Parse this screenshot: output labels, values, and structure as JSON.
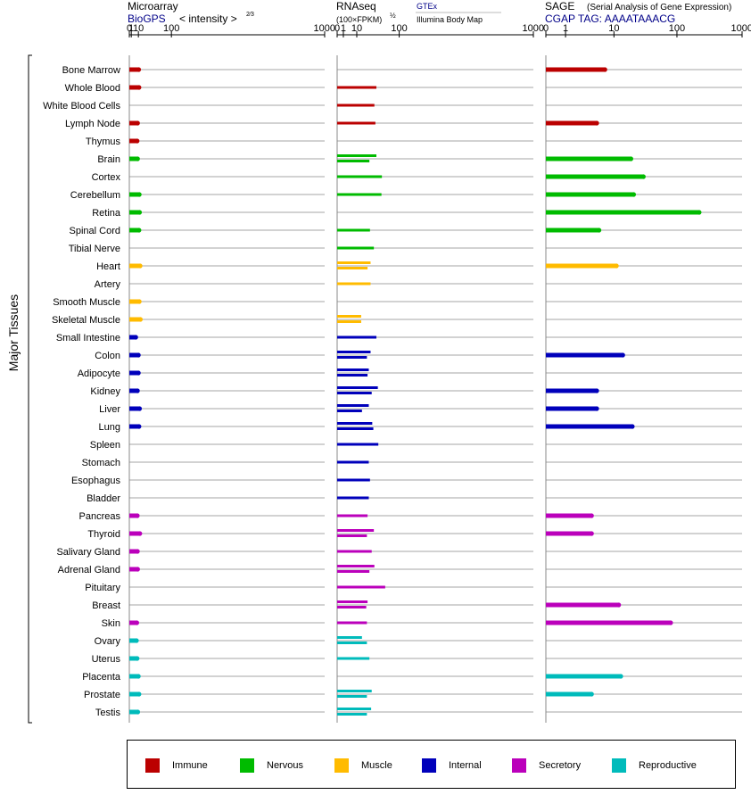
{
  "side_label": "Major Tissues",
  "panels": [
    {
      "title": "Microarray",
      "subtitle": "BioGPS",
      "scale_label": "< intensity >",
      "scale_exp": "2⁄3",
      "extra": ""
    },
    {
      "title": "RNAseq",
      "subtitle": "(100×FPKM)",
      "scale_exp": "½",
      "link1": "GTEx",
      "link2": "Illumina Body Map"
    },
    {
      "title": "SAGE",
      "title_note": "(Serial Analysis of Gene Expression)",
      "subtitle": "CGAP TAG: AAAATAAACG"
    }
  ],
  "colors": {
    "Immune": "#bb0000",
    "Nervous": "#00bb00",
    "Muscle": "#ffbb00",
    "Internal": "#0000bb",
    "Secretory": "#bb00bb",
    "Reproductive": "#00bbbb"
  },
  "legend": [
    {
      "label": "Immune",
      "color": "#bb0000"
    },
    {
      "label": "Nervous",
      "color": "#00bb00"
    },
    {
      "label": "Muscle",
      "color": "#ffbb00"
    },
    {
      "label": "Internal",
      "color": "#0000bb"
    },
    {
      "label": "Secretory",
      "color": "#bb00bb"
    },
    {
      "label": "Reproductive",
      "color": "#00bbbb"
    }
  ],
  "chart_data": [
    {
      "type": "bar",
      "title": "Microarray",
      "subtitle": "BioGPS",
      "xlabel": "< intensity >2/3",
      "x_ticks": [
        "0",
        "1",
        "10",
        "100",
        "1000"
      ],
      "x_scale": "power 2/3",
      "xlim": [
        0,
        1000
      ],
      "categories": [
        "Bone Marrow",
        "Whole Blood",
        "White Blood Cells",
        "Lymph Node",
        "Thymus",
        "Brain",
        "Cortex",
        "Cerebellum",
        "Retina",
        "Spinal Cord",
        "Tibial Nerve",
        "Heart",
        "Artery",
        "Smooth Muscle",
        "Skeletal Muscle",
        "Small Intestine",
        "Colon",
        "Adipocyte",
        "Kidney",
        "Liver",
        "Lung",
        "Spleen",
        "Stomach",
        "Esophagus",
        "Bladder",
        "Pancreas",
        "Thyroid",
        "Salivary Gland",
        "Adrenal Gland",
        "Pituitary",
        "Breast",
        "Skin",
        "Ovary",
        "Uterus",
        "Placenta",
        "Prostate",
        "Testis"
      ],
      "groups": [
        "Immune",
        "Immune",
        "Immune",
        "Immune",
        "Immune",
        "Nervous",
        "Nervous",
        "Nervous",
        "Nervous",
        "Nervous",
        "Nervous",
        "Muscle",
        "Muscle",
        "Muscle",
        "Muscle",
        "Internal",
        "Internal",
        "Internal",
        "Internal",
        "Internal",
        "Internal",
        "Internal",
        "Internal",
        "Internal",
        "Internal",
        "Secretory",
        "Secretory",
        "Secretory",
        "Secretory",
        "Secretory",
        "Secretory",
        "Secretory",
        "Reproductive",
        "Reproductive",
        "Reproductive",
        "Reproductive",
        "Reproductive"
      ],
      "series": [
        {
          "values": [
            10.5,
            11,
            null,
            8.7,
            8,
            8.7,
            null,
            11.5,
            12,
            11,
            null,
            13,
            null,
            11.5,
            13.5,
            6,
            10,
            10,
            8.5,
            12,
            11,
            null,
            null,
            null,
            null,
            8.3,
            12.5,
            8.5,
            8.8,
            null,
            null,
            7.5,
            7,
            8,
            10,
            11,
            9
          ]
        }
      ]
    },
    {
      "type": "bar",
      "title": "RNAseq",
      "subtitle": "(100×FPKM)½",
      "xlabel": "(100×FPKM)½",
      "x_ticks": [
        "0",
        "1",
        "10",
        "100",
        "1000"
      ],
      "x_scale": "square root",
      "xlim": [
        0,
        1000
      ],
      "legend_text": [
        "GTEx",
        "Illumina Body Map"
      ],
      "categories": [
        "Bone Marrow",
        "Whole Blood",
        "White Blood Cells",
        "Lymph Node",
        "Thymus",
        "Brain",
        "Cortex",
        "Cerebellum",
        "Retina",
        "Spinal Cord",
        "Tibial Nerve",
        "Heart",
        "Artery",
        "Smooth Muscle",
        "Skeletal Muscle",
        "Small Intestine",
        "Colon",
        "Adipocyte",
        "Kidney",
        "Liver",
        "Lung",
        "Spleen",
        "Stomach",
        "Esophagus",
        "Bladder",
        "Pancreas",
        "Thyroid",
        "Salivary Gland",
        "Adrenal Gland",
        "Pituitary",
        "Breast",
        "Skin",
        "Ovary",
        "Uterus",
        "Placenta",
        "Prostate",
        "Testis"
      ],
      "groups": [
        "Immune",
        "Immune",
        "Immune",
        "Immune",
        "Immune",
        "Nervous",
        "Nervous",
        "Nervous",
        "Nervous",
        "Nervous",
        "Nervous",
        "Muscle",
        "Muscle",
        "Muscle",
        "Muscle",
        "Internal",
        "Internal",
        "Internal",
        "Internal",
        "Internal",
        "Internal",
        "Internal",
        "Internal",
        "Internal",
        "Internal",
        "Secretory",
        "Secretory",
        "Secretory",
        "Secretory",
        "Secretory",
        "Secretory",
        "Secretory",
        "Reproductive",
        "Reproductive",
        "Reproductive",
        "Reproductive",
        "Reproductive"
      ],
      "series": [
        {
          "name": "GTEx",
          "values": [
            null,
            40,
            36,
            38,
            null,
            40,
            52,
            51,
            null,
            28,
            35,
            29,
            null,
            null,
            15,
            40,
            29,
            26,
            43,
            26,
            32,
            44,
            26,
            28,
            26,
            24,
            35,
            31,
            36,
            60,
            24,
            23,
            16,
            27,
            null,
            31,
            30
          ]
        },
        {
          "name": "Illumina Body Map",
          "values": [
            null,
            null,
            null,
            null,
            null,
            27,
            null,
            null,
            null,
            null,
            null,
            24,
            29,
            null,
            15,
            null,
            23,
            24,
            31,
            16,
            34,
            null,
            null,
            null,
            null,
            null,
            23,
            null,
            27,
            null,
            22,
            null,
            23,
            null,
            null,
            23,
            23
          ]
        }
      ]
    },
    {
      "type": "bar",
      "title": "SAGE",
      "subtitle": "CGAP TAG: AAAATAAACG",
      "xlabel": "",
      "x_ticks": [
        "0",
        "1",
        "10",
        "100",
        "1000"
      ],
      "x_scale": "log(x+1)",
      "xlim": [
        0,
        1000
      ],
      "categories": [
        "Bone Marrow",
        "Whole Blood",
        "White Blood Cells",
        "Lymph Node",
        "Thymus",
        "Brain",
        "Cortex",
        "Cerebellum",
        "Retina",
        "Spinal Cord",
        "Tibial Nerve",
        "Heart",
        "Artery",
        "Smooth Muscle",
        "Skeletal Muscle",
        "Small Intestine",
        "Colon",
        "Adipocyte",
        "Kidney",
        "Liver",
        "Lung",
        "Spleen",
        "Stomach",
        "Esophagus",
        "Bladder",
        "Pancreas",
        "Thyroid",
        "Salivary Gland",
        "Adrenal Gland",
        "Pituitary",
        "Breast",
        "Skin",
        "Ovary",
        "Uterus",
        "Placenta",
        "Prostate",
        "Testis"
      ],
      "groups": [
        "Immune",
        "Immune",
        "Immune",
        "Immune",
        "Immune",
        "Nervous",
        "Nervous",
        "Nervous",
        "Nervous",
        "Nervous",
        "Nervous",
        "Muscle",
        "Muscle",
        "Muscle",
        "Muscle",
        "Internal",
        "Internal",
        "Internal",
        "Internal",
        "Internal",
        "Internal",
        "Internal",
        "Internal",
        "Internal",
        "Internal",
        "Secretory",
        "Secretory",
        "Secretory",
        "Secretory",
        "Secretory",
        "Secretory",
        "Secretory",
        "Reproductive",
        "Reproductive",
        "Reproductive",
        "Reproductive",
        "Reproductive"
      ],
      "series": [
        {
          "values": [
            7,
            null,
            null,
            5,
            null,
            19,
            30,
            21,
            220,
            5.5,
            null,
            11,
            null,
            null,
            null,
            null,
            14,
            null,
            5,
            5,
            20,
            null,
            null,
            null,
            null,
            4,
            4,
            null,
            null,
            null,
            12,
            80,
            null,
            null,
            13,
            4,
            null
          ]
        }
      ]
    }
  ]
}
